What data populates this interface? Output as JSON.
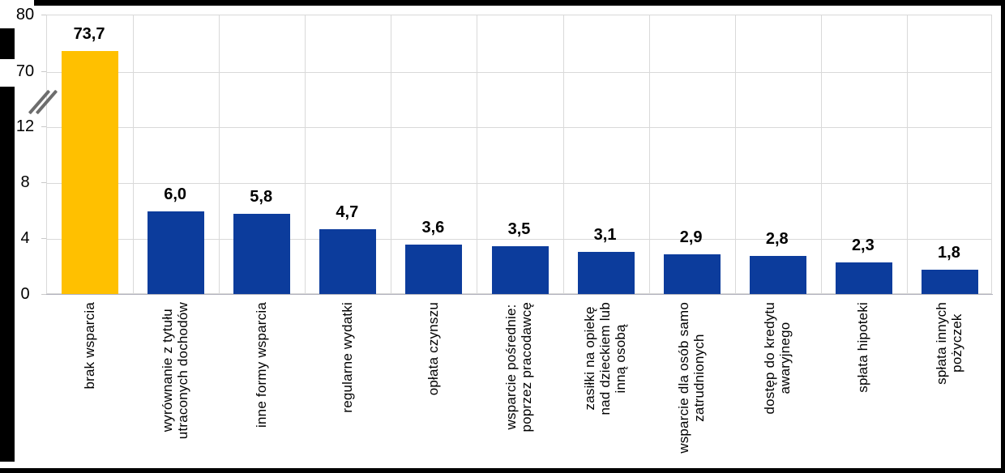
{
  "frame_color": "#000000",
  "chart": {
    "background": "#FFFFFF",
    "gridline_color": "#D9D9D9",
    "baseline_color": "#B0B0BC",
    "break_mark_color": "#6D6D6D",
    "highlight_bar_color": "#FFC000",
    "bar_color": "#0C3C9C",
    "text_color": "#000000"
  },
  "chart_data": {
    "type": "bar",
    "title": "",
    "xlabel": "",
    "ylabel": "",
    "categories": [
      "brak wsparcia",
      "wyrównanie z tytułu\nutraconych dochodów",
      "inne formy wsparcia",
      "regularne wydatki",
      "opłata czynszu",
      "wsparcie pośrednie:\npoprzez pracodawcę",
      "zasiłki na opiekę\nnad dzieckiem lub\ninną osobą",
      "wsparcie dla osób samo\nzatrudnionych",
      "dostęp do kredytu\nawaryjnego",
      "spłata hipoteki",
      "spłata innych\npożyczek"
    ],
    "values": [
      73.7,
      6.0,
      5.8,
      4.7,
      3.6,
      3.5,
      3.1,
      2.9,
      2.8,
      2.3,
      1.8
    ],
    "data_labels": [
      "73,7",
      "6,0",
      "5,8",
      "4,7",
      "3,6",
      "3,5",
      "3,1",
      "2,9",
      "2,8",
      "2,3",
      "1,8"
    ],
    "highlighted_index": 0,
    "y_ticks": [
      0,
      4,
      8,
      12,
      70,
      80
    ],
    "y_tick_labels": [
      "0",
      "4",
      "8",
      "12",
      "70",
      "80"
    ],
    "axis_break": {
      "between": [
        12,
        70
      ]
    },
    "ylim_segments": [
      [
        0,
        13.5
      ],
      [
        66,
        80
      ]
    ],
    "grid": true,
    "legend": null,
    "decimal_separator": ","
  }
}
